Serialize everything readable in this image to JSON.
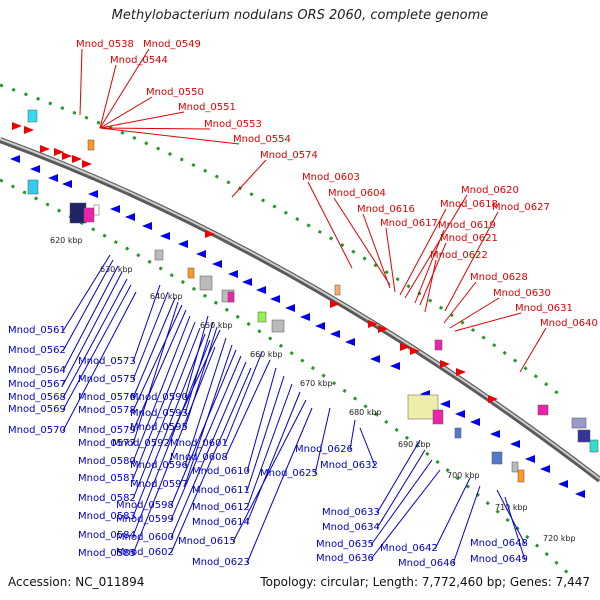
{
  "title": "Methylobacterium nodulans ORS 2060, complete genome",
  "footer": {
    "accession": "Accession: NC_011894",
    "summary": "Topology: circular; Length: 7,772,460 bp; Genes: 7,447"
  },
  "colors": {
    "top_strand": "#ee0000",
    "bottom_strand": "#0000dd",
    "backbone": "#7a7a7a",
    "tick": "#229922"
  },
  "kbp_ticks": [
    "620 kbp",
    "630 kbp",
    "640 kbp",
    "650 kbp",
    "660 kbp",
    "670 kbp",
    "680 kbp",
    "690 kbp",
    "700 kbp",
    "710 kbp",
    "720 kbp"
  ],
  "top_labels": [
    "Mnod_0538",
    "Mnod_0549",
    "Mnod_0544",
    "Mnod_0550",
    "Mnod_0551",
    "Mnod_0553",
    "Mnod_0554",
    "Mnod_0574",
    "Mnod_0603",
    "Mnod_0604",
    "Mnod_0620",
    "Mnod_0618",
    "Mnod_0616",
    "Mnod_0627",
    "Mnod_0617",
    "Mnod_0619",
    "Mnod_0621",
    "Mnod_0622",
    "Mnod_0628",
    "Mnod_0630",
    "Mnod_0631",
    "Mnod_0640"
  ],
  "bottom_labels": [
    "Mnod_0561",
    "Mnod_0562",
    "Mnod_0564",
    "Mnod_0567",
    "Mnod_0568",
    "Mnod_0569",
    "Mnod_0570",
    "Mnod_0573",
    "Mnod_0575",
    "Mnod_0576",
    "Mnod_0578",
    "Mnod_0577",
    "Mnod_0579",
    "Mnod_0580",
    "Mnod_0581",
    "Mnod_0582",
    "Mnod_0583",
    "Mnod_0584",
    "Mnod_0585",
    "Mnod_0590",
    "Mnod_0593",
    "Mnod_0592",
    "Mnod_0595",
    "Mnod_0596",
    "Mnod_0597",
    "Mnod_0598",
    "Mnod_0599",
    "Mnod_0600",
    "Mnod_0602",
    "Mnod_0601",
    "Mnod_0608",
    "Mnod_0610",
    "Mnod_0611",
    "Mnod_0612",
    "Mnod_0614",
    "Mnod_0615",
    "Mnod_0623",
    "Mnod_0625",
    "Mnod_0626",
    "Mnod_0632",
    "Mnod_0633",
    "Mnod_0634",
    "Mnod_0635",
    "Mnod_0636",
    "Mnod_0642",
    "Mnod_0646",
    "Mnod_0648",
    "Mnod_0649"
  ]
}
